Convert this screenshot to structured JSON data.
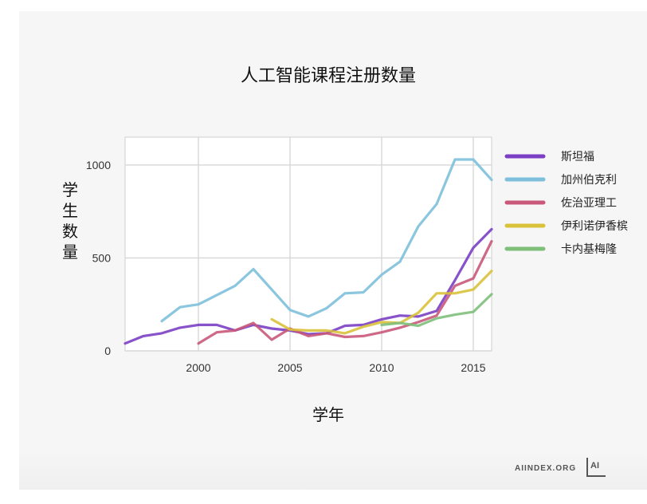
{
  "chart_data": {
    "type": "line",
    "title": "人工智能课程注册数量",
    "xlabel": "学年",
    "ylabel": "学生数量",
    "xlim": [
      1996,
      2016
    ],
    "ylim": [
      0,
      1150
    ],
    "xticks": [
      2000,
      2005,
      2010,
      2015
    ],
    "yticks": [
      0,
      500,
      1000
    ],
    "grid": true,
    "legend_position": "right",
    "series": [
      {
        "name": "斯坦福",
        "color": "#7b3fc4",
        "x": [
          1996,
          1997,
          1998,
          1999,
          2000,
          2001,
          2002,
          2003,
          2004,
          2005,
          2006,
          2007,
          2008,
          2009,
          2010,
          2011,
          2012,
          2013,
          2014,
          2015,
          2016
        ],
        "y": [
          40,
          80,
          95,
          125,
          140,
          140,
          110,
          140,
          120,
          110,
          90,
          95,
          135,
          140,
          170,
          190,
          185,
          215,
          380,
          555,
          655
        ]
      },
      {
        "name": "加州伯克利",
        "color": "#7ec0dc",
        "x": [
          1998,
          1999,
          2000,
          2001,
          2002,
          2003,
          2004,
          2005,
          2006,
          2007,
          2008,
          2009,
          2010,
          2011,
          2012,
          2013,
          2014,
          2015,
          2016
        ],
        "y": [
          160,
          235,
          250,
          300,
          350,
          440,
          330,
          220,
          185,
          230,
          310,
          315,
          410,
          480,
          670,
          790,
          1030,
          1030,
          920
        ]
      },
      {
        "name": "佐治亚理工",
        "color": "#c9597a",
        "x": [
          2000,
          2001,
          2002,
          2003,
          2004,
          2005,
          2006,
          2007,
          2008,
          2009,
          2010,
          2011,
          2012,
          2013,
          2014,
          2015,
          2016
        ],
        "y": [
          40,
          100,
          110,
          150,
          60,
          120,
          80,
          95,
          75,
          80,
          100,
          125,
          155,
          190,
          350,
          390,
          590
        ]
      },
      {
        "name": "伊利诺伊香槟",
        "color": "#d9c23a",
        "x": [
          2004,
          2005,
          2006,
          2007,
          2008,
          2009,
          2010,
          2011,
          2012,
          2013,
          2014,
          2015,
          2016
        ],
        "y": [
          170,
          115,
          110,
          110,
          95,
          130,
          155,
          150,
          205,
          310,
          310,
          330,
          430
        ]
      },
      {
        "name": "卡内基梅隆",
        "color": "#7ebf7a",
        "x": [
          2010,
          2011,
          2012,
          2013,
          2014,
          2015,
          2016
        ],
        "y": [
          140,
          150,
          135,
          175,
          195,
          210,
          305
        ]
      }
    ]
  },
  "brand": {
    "text": "AIINDEX.ORG",
    "logo_text": "AI"
  }
}
